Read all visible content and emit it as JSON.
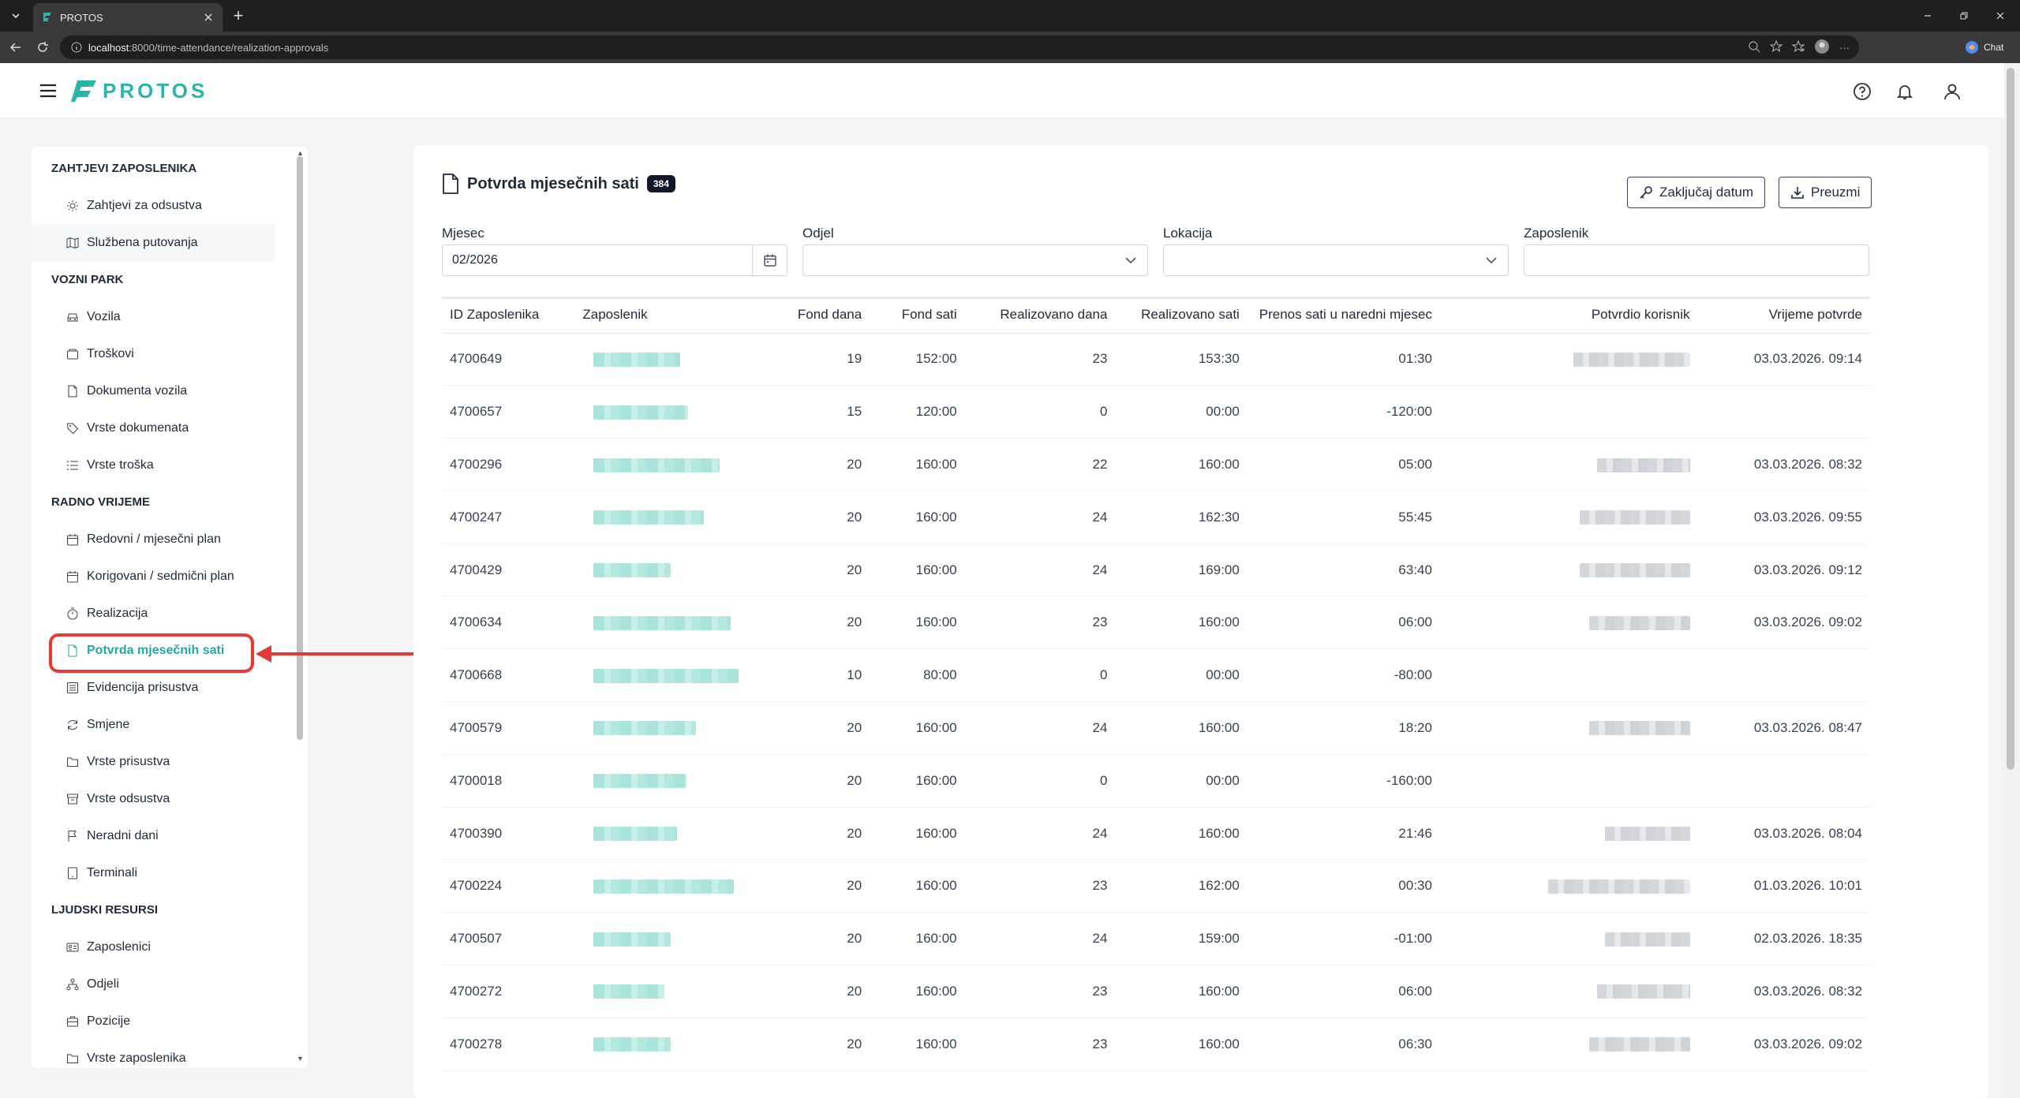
{
  "browser": {
    "tab_title": "PROTOS",
    "url_host": "localhost",
    "url_rest": ":8000/time-attendance/realization-approvals",
    "chat_label": "Chat"
  },
  "app": {
    "logo_text": "PROTOS",
    "brand_color": "#2bb5a9"
  },
  "sidebar": {
    "sections": [
      {
        "title": "ZAHTJEVI ZAPOSLENIKA",
        "items": [
          {
            "label": "Zahtjevi za odsustva",
            "icon": "sun-icon"
          },
          {
            "label": "Službena putovanja",
            "icon": "map-icon"
          }
        ]
      },
      {
        "title": "VOZNI PARK",
        "items": [
          {
            "label": "Vozila",
            "icon": "car-icon"
          },
          {
            "label": "Troškovi",
            "icon": "wallet-icon"
          },
          {
            "label": "Dokumenta vozila",
            "icon": "file-icon"
          },
          {
            "label": "Vrste dokumenata",
            "icon": "tag-icon"
          },
          {
            "label": "Vrste troška",
            "icon": "list-icon"
          }
        ]
      },
      {
        "title": "RADNO VRIJEME",
        "items": [
          {
            "label": "Redovni / mjesečni plan",
            "icon": "calendar-icon"
          },
          {
            "label": "Korigovani / sedmični plan",
            "icon": "calendar-icon"
          },
          {
            "label": "Realizacija",
            "icon": "stopwatch-icon"
          },
          {
            "label": "Potvrda mjesečnih sati",
            "icon": "file-icon"
          },
          {
            "label": "Evidencija prisustva",
            "icon": "list-box-icon"
          },
          {
            "label": "Smjene",
            "icon": "refresh-icon"
          },
          {
            "label": "Vrste prisustva",
            "icon": "folder-icon"
          },
          {
            "label": "Vrste odsustva",
            "icon": "archive-icon"
          },
          {
            "label": "Neradni dani",
            "icon": "flag-icon"
          },
          {
            "label": "Terminali",
            "icon": "tablet-icon"
          }
        ]
      },
      {
        "title": "LJUDSKI RESURSI",
        "items": [
          {
            "label": "Zaposlenici",
            "icon": "id-card-icon"
          },
          {
            "label": "Odjeli",
            "icon": "org-chart-icon"
          },
          {
            "label": "Pozicije",
            "icon": "briefcase-icon"
          },
          {
            "label": "Vrste zaposlenika",
            "icon": "folder-icon"
          }
        ]
      }
    ]
  },
  "page": {
    "title": "Potvrda mjesečnih sati",
    "count": "384",
    "lock_button": "Zaključaj datum",
    "download_button": "Preuzmi",
    "filters": {
      "month_label": "Mjesec",
      "month_value": "02/2026",
      "department_label": "Odjel",
      "location_label": "Lokacija",
      "employee_label": "Zaposlenik"
    }
  },
  "table": {
    "columns": [
      "ID Zaposlenika",
      "Zaposlenik",
      "Fond dana",
      "Fond sati",
      "Realizovano dana",
      "Realizovano sati",
      "Prenos sati u naredni mjesec",
      "Potvrdio korisnik",
      "Vrijeme potvrde"
    ],
    "rows": [
      {
        "id": "4700649",
        "fond_dana": "19",
        "fond_sati": "152:00",
        "real_dana": "23",
        "real_sati": "153:30",
        "prenos": "01:30",
        "confirmed": true,
        "time": "03.03.2026. 09:14"
      },
      {
        "id": "4700657",
        "fond_dana": "15",
        "fond_sati": "120:00",
        "real_dana": "0",
        "real_sati": "00:00",
        "prenos": "-120:00",
        "confirmed": false,
        "time": ""
      },
      {
        "id": "4700296",
        "fond_dana": "20",
        "fond_sati": "160:00",
        "real_dana": "22",
        "real_sati": "160:00",
        "prenos": "05:00",
        "confirmed": true,
        "time": "03.03.2026. 08:32"
      },
      {
        "id": "4700247",
        "fond_dana": "20",
        "fond_sati": "160:00",
        "real_dana": "24",
        "real_sati": "162:30",
        "prenos": "55:45",
        "confirmed": true,
        "time": "03.03.2026. 09:55"
      },
      {
        "id": "4700429",
        "fond_dana": "20",
        "fond_sati": "160:00",
        "real_dana": "24",
        "real_sati": "169:00",
        "prenos": "63:40",
        "confirmed": true,
        "time": "03.03.2026. 09:12"
      },
      {
        "id": "4700634",
        "fond_dana": "20",
        "fond_sati": "160:00",
        "real_dana": "23",
        "real_sati": "160:00",
        "prenos": "06:00",
        "confirmed": true,
        "time": "03.03.2026. 09:02"
      },
      {
        "id": "4700668",
        "fond_dana": "10",
        "fond_sati": "80:00",
        "real_dana": "0",
        "real_sati": "00:00",
        "prenos": "-80:00",
        "confirmed": false,
        "time": ""
      },
      {
        "id": "4700579",
        "fond_dana": "20",
        "fond_sati": "160:00",
        "real_dana": "24",
        "real_sati": "160:00",
        "prenos": "18:20",
        "confirmed": true,
        "time": "03.03.2026. 08:47"
      },
      {
        "id": "4700018",
        "fond_dana": "20",
        "fond_sati": "160:00",
        "real_dana": "0",
        "real_sati": "00:00",
        "prenos": "-160:00",
        "confirmed": false,
        "time": ""
      },
      {
        "id": "4700390",
        "fond_dana": "20",
        "fond_sati": "160:00",
        "real_dana": "24",
        "real_sati": "160:00",
        "prenos": "21:46",
        "confirmed": true,
        "time": "03.03.2026. 08:04"
      },
      {
        "id": "4700224",
        "fond_dana": "20",
        "fond_sati": "160:00",
        "real_dana": "23",
        "real_sati": "162:00",
        "prenos": "00:30",
        "confirmed": true,
        "time": "01.03.2026. 10:01"
      },
      {
        "id": "4700507",
        "fond_dana": "20",
        "fond_sati": "160:00",
        "real_dana": "24",
        "real_sati": "159:00",
        "prenos": "-01:00",
        "confirmed": true,
        "time": "02.03.2026. 18:35"
      },
      {
        "id": "4700272",
        "fond_dana": "20",
        "fond_sati": "160:00",
        "real_dana": "23",
        "real_sati": "160:00",
        "prenos": "06:00",
        "confirmed": true,
        "time": "03.03.2026. 08:32"
      },
      {
        "id": "4700278",
        "fond_dana": "20",
        "fond_sati": "160:00",
        "real_dana": "23",
        "real_sati": "160:00",
        "prenos": "06:30",
        "confirmed": true,
        "time": "03.03.2026. 09:02"
      }
    ]
  }
}
